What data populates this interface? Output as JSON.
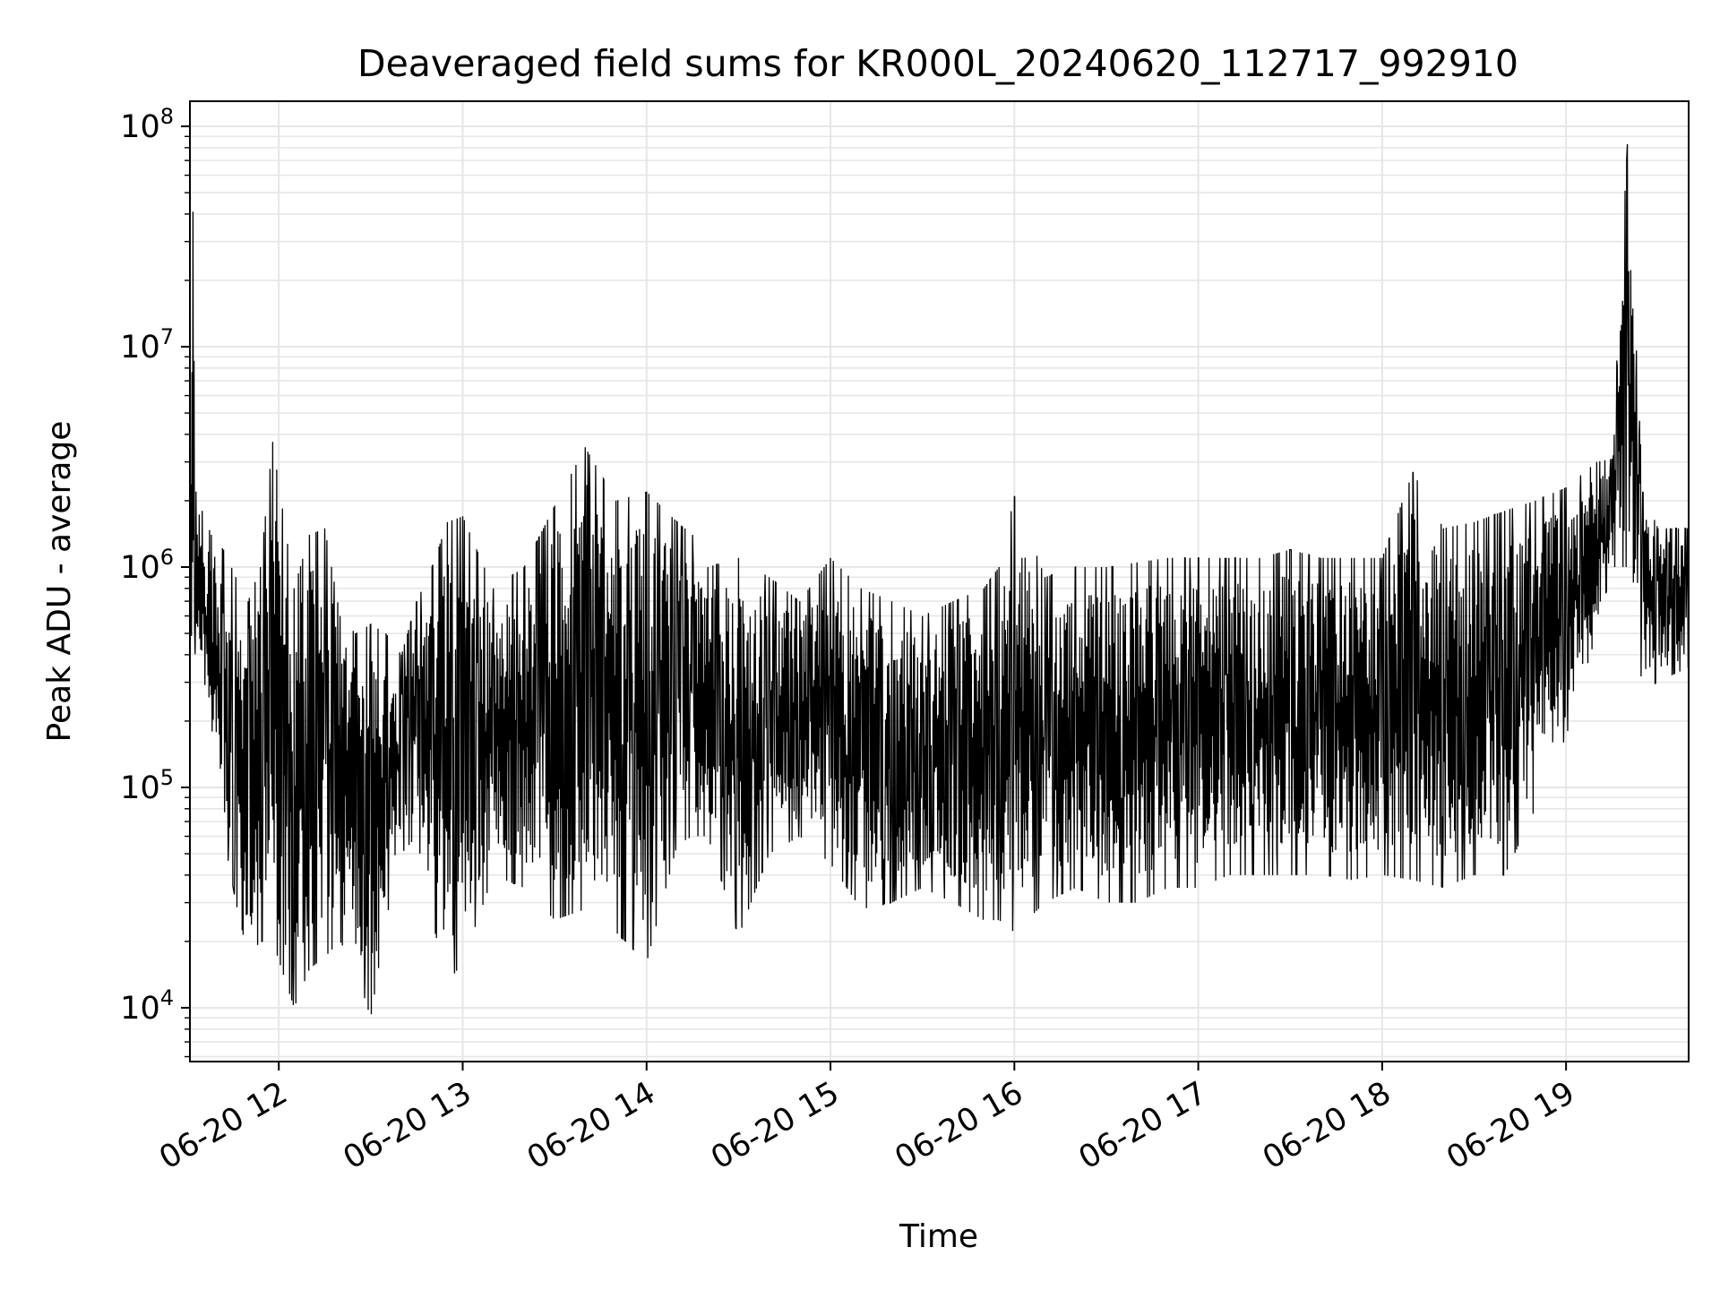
{
  "chart_data": {
    "type": "line",
    "title": "Deaveraged field sums for KR000L_20240620_112717_992910",
    "xlabel": "Time",
    "ylabel": "Peak ADU - average",
    "yscale": "log",
    "ylim": [
      5700,
      130000000
    ],
    "xlim": [
      "06-20 11:31",
      "06-20 19:40"
    ],
    "grid": true,
    "line_color": "#000000",
    "grid_color": "#e6e6e6",
    "x_ticks": [
      "06-20 12",
      "06-20 13",
      "06-20 14",
      "06-20 15",
      "06-20 16",
      "06-20 17",
      "06-20 18",
      "06-20 19"
    ],
    "y_ticks": [
      {
        "base": "10",
        "exp": "4"
      },
      {
        "base": "10",
        "exp": "5"
      },
      {
        "base": "10",
        "exp": "6"
      },
      {
        "base": "10",
        "exp": "7"
      },
      {
        "base": "10",
        "exp": "8"
      }
    ],
    "series": [
      {
        "x": [
          "06-20 11:31",
          "06-20 11:32",
          "06-20 11:33",
          "06-20 11:35",
          "06-20 11:38",
          "06-20 11:42",
          "06-20 11:46",
          "06-20 11:50",
          "06-20 11:54",
          "06-20 11:58",
          "06-20 12:05",
          "06-20 12:10",
          "06-20 12:15",
          "06-20 12:20",
          "06-20 12:25",
          "06-20 12:30",
          "06-20 12:35",
          "06-20 12:40",
          "06-20 12:45",
          "06-20 12:50",
          "06-20 12:55",
          "06-20 13:00",
          "06-20 13:10",
          "06-20 13:20",
          "06-20 13:30",
          "06-20 13:40",
          "06-20 13:50",
          "06-20 14:00",
          "06-20 14:10",
          "06-20 14:15",
          "06-20 14:20",
          "06-20 14:30",
          "06-20 14:40",
          "06-20 14:50",
          "06-20 15:00",
          "06-20 15:10",
          "06-20 15:20",
          "06-20 15:30",
          "06-20 15:40",
          "06-20 15:50",
          "06-20 15:55",
          "06-20 16:00",
          "06-20 16:10",
          "06-20 16:20",
          "06-20 16:30",
          "06-20 16:40",
          "06-20 16:50",
          "06-20 17:00",
          "06-20 17:10",
          "06-20 17:20",
          "06-20 17:30",
          "06-20 17:40",
          "06-20 17:50",
          "06-20 18:00",
          "06-20 18:10",
          "06-20 18:20",
          "06-20 18:30",
          "06-20 18:40",
          "06-20 18:50",
          "06-20 19:00",
          "06-20 19:10",
          "06-20 19:15",
          "06-20 19:20",
          "06-20 19:25",
          "06-20 19:30",
          "06-20 19:34",
          "06-20 19:36",
          "06-20 19:40"
        ],
        "high": [
          1000000,
          41000000,
          2200000,
          1800000,
          1400000,
          1200000,
          900000,
          700000,
          1000000,
          3700000,
          800000,
          1400000,
          1500000,
          600000,
          500000,
          550000,
          500000,
          400000,
          700000,
          1000000,
          1600000,
          1700000,
          800000,
          1000000,
          1900000,
          3500000,
          2000000,
          2200000,
          1600000,
          1400000,
          1000000,
          1100000,
          900000,
          700000,
          1100000,
          800000,
          700000,
          600000,
          700000,
          800000,
          1000000,
          2100000,
          900000,
          1000000,
          1000000,
          1050000,
          1100000,
          1100000,
          1100000,
          1100000,
          1200000,
          1100000,
          1100000,
          1100000,
          2700000,
          1500000,
          1600000,
          1800000,
          2000000,
          2300000,
          3000000,
          3100000,
          83000000,
          2200000,
          1500000,
          1500000,
          1500000,
          1500000
        ],
        "low": [
          500000,
          250000,
          500000,
          300000,
          150000,
          60000,
          30000,
          17000,
          20000,
          20000,
          10000,
          15000,
          17000,
          20000,
          15000,
          9000,
          25000,
          50000,
          60000,
          25000,
          13000,
          16000,
          40000,
          35000,
          25000,
          28000,
          22000,
          16000,
          55000,
          60000,
          60000,
          21000,
          50000,
          60000,
          45000,
          28000,
          30000,
          35000,
          30000,
          25000,
          25000,
          22000,
          30000,
          35000,
          30000,
          30000,
          35000,
          35000,
          40000,
          40000,
          40000,
          40000,
          38000,
          40000,
          38000,
          35000,
          40000,
          40000,
          80000,
          170000,
          500000,
          1000000,
          1000000,
          280000,
          300000,
          320000,
          330000,
          350000
        ]
      }
    ]
  }
}
